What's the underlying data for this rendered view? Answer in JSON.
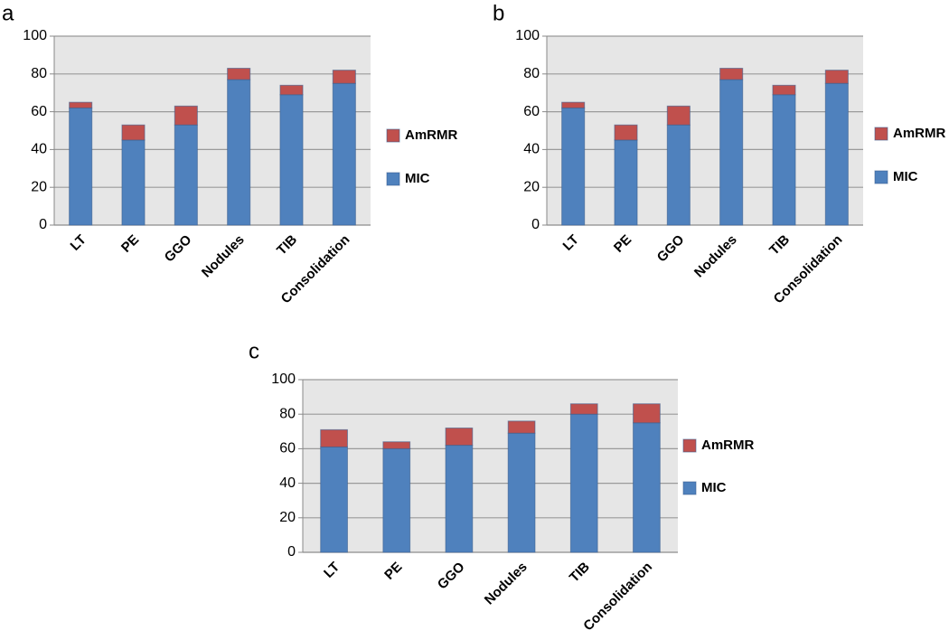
{
  "chart_data": [
    {
      "type": "bar",
      "title": "a",
      "stacked": true,
      "grid": true,
      "categories": [
        "LT",
        "PE",
        "GGO",
        "Nodules",
        "TIB",
        "Consolidation"
      ],
      "series": [
        {
          "name": "MIC",
          "color": "#4f81bd",
          "values": [
            62,
            45,
            53,
            77,
            69,
            75
          ]
        },
        {
          "name": "AmRMR",
          "color": "#c0504d",
          "values": [
            3,
            8,
            10,
            6,
            5,
            7
          ]
        }
      ],
      "ylim": [
        0,
        100
      ],
      "yticks": [
        0,
        20,
        40,
        60,
        80,
        100
      ]
    },
    {
      "type": "bar",
      "title": "b",
      "stacked": true,
      "grid": true,
      "categories": [
        "LT",
        "PE",
        "GGO",
        "Nodules",
        "TIB",
        "Consolidation"
      ],
      "series": [
        {
          "name": "MIC",
          "color": "#4f81bd",
          "values": [
            62,
            45,
            53,
            77,
            69,
            75
          ]
        },
        {
          "name": "AmRMR",
          "color": "#c0504d",
          "values": [
            3,
            8,
            10,
            6,
            5,
            7
          ]
        }
      ],
      "ylim": [
        0,
        100
      ],
      "yticks": [
        0,
        20,
        40,
        60,
        80,
        100
      ]
    },
    {
      "type": "bar",
      "title": "c",
      "stacked": true,
      "grid": true,
      "categories": [
        "LT",
        "PE",
        "GGO",
        "Nodules",
        "TIB",
        "Consolidation"
      ],
      "series": [
        {
          "name": "MIC",
          "color": "#4f81bd",
          "values": [
            61,
            60,
            62,
            69,
            80,
            75
          ]
        },
        {
          "name": "AmRMR",
          "color": "#c0504d",
          "values": [
            10,
            4,
            10,
            7,
            6,
            11
          ]
        }
      ],
      "ylim": [
        0,
        100
      ],
      "yticks": [
        0,
        20,
        40,
        60,
        80,
        100
      ]
    }
  ]
}
